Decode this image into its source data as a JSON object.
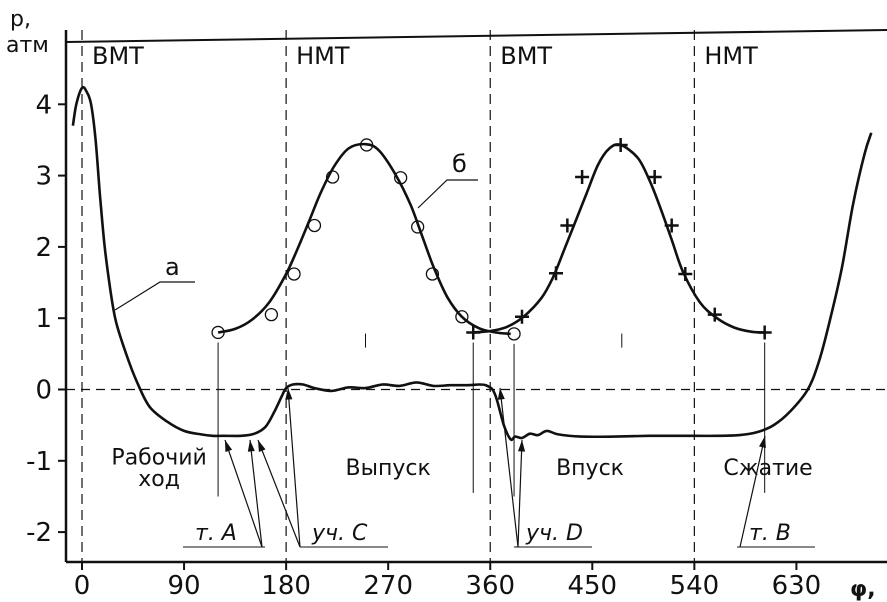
{
  "chart_data": {
    "type": "line",
    "ylabel_lines": [
      "p,",
      "атм"
    ],
    "xlabel": "φ,",
    "xlim": [
      -8,
      700
    ],
    "ylim": [
      -2.5,
      4.9
    ],
    "x_ticks": [
      0,
      90,
      180,
      270,
      360,
      450,
      540,
      630
    ],
    "y_ticks": [
      -2,
      -1,
      0,
      1,
      2,
      3,
      4
    ],
    "vlines": [
      {
        "x": 0,
        "label": "ВМТ"
      },
      {
        "x": 180,
        "label": "НМТ"
      },
      {
        "x": 360,
        "label": "ВМТ"
      },
      {
        "x": 540,
        "label": "НМТ"
      }
    ],
    "zero_line": true,
    "region_labels": [
      {
        "text": "Рабочий",
        "x": 68,
        "y": -1.05
      },
      {
        "text": "ход",
        "x": 68,
        "y": -1.35
      },
      {
        "text": "Выпуск",
        "x": 270,
        "y": -1.2
      },
      {
        "text": "Впуск",
        "x": 448,
        "y": -1.2
      },
      {
        "text": "Сжатие",
        "x": 605,
        "y": -1.2
      }
    ],
    "annotations": [
      {
        "text": "т. А",
        "x": 128,
        "y": -2.0
      },
      {
        "text": "уч. С",
        "x": 222,
        "y": -2.0
      },
      {
        "text": "уч. D",
        "x": 394,
        "y": -2.0
      },
      {
        "text": "т. В",
        "x": 612,
        "y": -2.0
      }
    ],
    "series": [
      {
        "name": "а",
        "points": [
          [
            -8,
            3.7
          ],
          [
            -5,
            4.0
          ],
          [
            0,
            4.23
          ],
          [
            4,
            4.18
          ],
          [
            8,
            4.0
          ],
          [
            12,
            3.5
          ],
          [
            16,
            2.7
          ],
          [
            20,
            2.0
          ],
          [
            25,
            1.4
          ],
          [
            30,
            0.95
          ],
          [
            40,
            0.45
          ],
          [
            50,
            0.05
          ],
          [
            60,
            -0.25
          ],
          [
            75,
            -0.45
          ],
          [
            90,
            -0.58
          ],
          [
            105,
            -0.63
          ],
          [
            115,
            -0.65
          ],
          [
            125,
            -0.65
          ],
          [
            140,
            -0.65
          ],
          [
            152,
            -0.62
          ],
          [
            162,
            -0.52
          ],
          [
            170,
            -0.3
          ],
          [
            176,
            -0.1
          ],
          [
            180,
            0.02
          ],
          [
            186,
            0.07
          ],
          [
            195,
            0.07
          ],
          [
            205,
            0.02
          ],
          [
            220,
            -0.02
          ],
          [
            235,
            0.03
          ],
          [
            250,
            0.02
          ],
          [
            265,
            0.07
          ],
          [
            280,
            0.05
          ],
          [
            295,
            0.1
          ],
          [
            310,
            0.05
          ],
          [
            325,
            0.06
          ],
          [
            340,
            0.06
          ],
          [
            350,
            0.07
          ],
          [
            356,
            0.06
          ],
          [
            362,
            0.0
          ],
          [
            366,
            -0.15
          ],
          [
            372,
            -0.5
          ],
          [
            378,
            -0.7
          ],
          [
            382,
            -0.66
          ],
          [
            388,
            -0.68
          ],
          [
            395,
            -0.62
          ],
          [
            402,
            -0.64
          ],
          [
            410,
            -0.58
          ],
          [
            420,
            -0.63
          ],
          [
            440,
            -0.66
          ],
          [
            470,
            -0.66
          ],
          [
            500,
            -0.65
          ],
          [
            530,
            -0.65
          ],
          [
            560,
            -0.65
          ],
          [
            580,
            -0.64
          ],
          [
            595,
            -0.6
          ],
          [
            610,
            -0.5
          ],
          [
            625,
            -0.3
          ],
          [
            640,
            0.0
          ],
          [
            650,
            0.4
          ],
          [
            660,
            1.0
          ],
          [
            670,
            1.7
          ],
          [
            680,
            2.6
          ],
          [
            690,
            3.3
          ],
          [
            696,
            3.6
          ]
        ]
      },
      {
        "name": "б",
        "points": [
          [
            120,
            0.8
          ],
          [
            135,
            0.85
          ],
          [
            150,
            0.98
          ],
          [
            165,
            1.22
          ],
          [
            180,
            1.62
          ],
          [
            190,
            1.97
          ],
          [
            200,
            2.35
          ],
          [
            210,
            2.74
          ],
          [
            222,
            3.12
          ],
          [
            235,
            3.38
          ],
          [
            250,
            3.44
          ],
          [
            262,
            3.35
          ],
          [
            277,
            3.0
          ],
          [
            290,
            2.58
          ],
          [
            300,
            2.15
          ],
          [
            310,
            1.72
          ],
          [
            322,
            1.3
          ],
          [
            335,
            1.02
          ],
          [
            350,
            0.86
          ],
          [
            365,
            0.8
          ],
          [
            378,
            0.78
          ]
        ]
      },
      {
        "name": "",
        "points": [
          [
            345,
            0.8
          ],
          [
            360,
            0.82
          ],
          [
            375,
            0.88
          ],
          [
            390,
            1.03
          ],
          [
            405,
            1.28
          ],
          [
            415,
            1.56
          ],
          [
            425,
            1.95
          ],
          [
            435,
            2.35
          ],
          [
            445,
            2.75
          ],
          [
            455,
            3.15
          ],
          [
            465,
            3.38
          ],
          [
            475,
            3.43
          ],
          [
            490,
            3.25
          ],
          [
            500,
            2.95
          ],
          [
            510,
            2.55
          ],
          [
            520,
            2.1
          ],
          [
            530,
            1.65
          ],
          [
            545,
            1.22
          ],
          [
            560,
            1.0
          ],
          [
            575,
            0.87
          ],
          [
            590,
            0.81
          ],
          [
            602,
            0.8
          ]
        ]
      }
    ],
    "markers_circle": [
      [
        120,
        0.8
      ],
      [
        167,
        1.05
      ],
      [
        187,
        1.62
      ],
      [
        205,
        2.3
      ],
      [
        221,
        2.98
      ],
      [
        251,
        3.43
      ],
      [
        281,
        2.97
      ],
      [
        296,
        2.28
      ],
      [
        309,
        1.62
      ],
      [
        335,
        1.02
      ],
      [
        381,
        0.78
      ]
    ],
    "markers_plus": [
      [
        345,
        0.8
      ],
      [
        388,
        1.02
      ],
      [
        418,
        1.63
      ],
      [
        428,
        2.3
      ],
      [
        441,
        2.98
      ],
      [
        475,
        3.43
      ],
      [
        505,
        2.98
      ],
      [
        520,
        2.3
      ],
      [
        532,
        1.62
      ],
      [
        558,
        1.05
      ],
      [
        602,
        0.8
      ]
    ],
    "small_ticks": [
      [
        250,
        0.7
      ],
      [
        476,
        0.7
      ]
    ]
  }
}
